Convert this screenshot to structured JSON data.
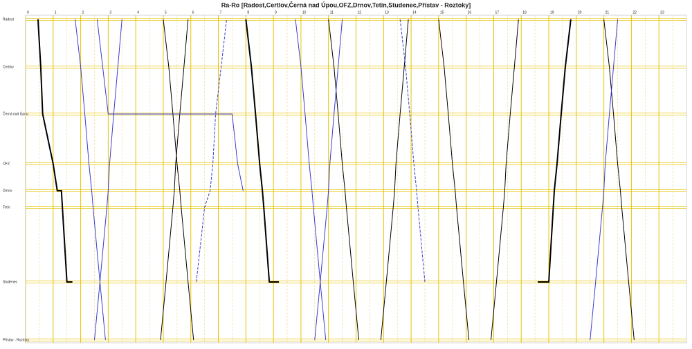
{
  "chart_data": {
    "type": "timetable",
    "title": "Ra-Ro [Radost,Certlov,Černá nad Úpou,OFZ,Drnov,Tetín,Studenec,Přístav - Roztoky]",
    "stations": [
      "Radost",
      "Certlov",
      "Černá nad Úpou",
      "OFZ",
      "Drnov",
      "Tetín",
      "Studenec",
      "Přístav - Roztoky"
    ],
    "xlim": [
      0,
      24
    ],
    "xticks": [
      0,
      1,
      2,
      3,
      4,
      5,
      6,
      7,
      8,
      9,
      10,
      11,
      12,
      13,
      14,
      15,
      16,
      17,
      18,
      19,
      20,
      21,
      22,
      23
    ],
    "grid": true,
    "trains": [
      {
        "color": "#000000",
        "width": 2,
        "dashed": false,
        "times": [
          0.45,
          0.55,
          0.62,
          1.0,
          1.15,
          1.3,
          1.5,
          1.7
        ],
        "stations": [
          0,
          1,
          2,
          3,
          4,
          4,
          6,
          6
        ]
      },
      {
        "color": "#000000",
        "width": 2,
        "dashed": false,
        "times": [
          8.0,
          8.2,
          8.35,
          8.5,
          8.6,
          8.65,
          8.85,
          9.2
        ],
        "stations": [
          0,
          1,
          2,
          3,
          4,
          5,
          6,
          6
        ]
      },
      {
        "color": "#000000",
        "width": 2,
        "dashed": false,
        "times": [
          18.6,
          19.0,
          19.2,
          19.3,
          19.45,
          19.6,
          19.8
        ],
        "stations": [
          6,
          6,
          4,
          3,
          2,
          1,
          0
        ]
      },
      {
        "color": "#000000",
        "width": 1,
        "dashed": false,
        "times": [
          5,
          5.2,
          5.35,
          5.5,
          5.6,
          5.65,
          5.9,
          6.1
        ],
        "stations": [
          0,
          1,
          2,
          3,
          4,
          5,
          6,
          7
        ]
      },
      {
        "color": "#000000",
        "width": 1,
        "dashed": false,
        "times": [
          11,
          11.2,
          11.35,
          11.5,
          11.6,
          11.65,
          11.9,
          12.1
        ],
        "stations": [
          0,
          1,
          2,
          3,
          4,
          5,
          6,
          7
        ]
      },
      {
        "color": "#000000",
        "width": 1,
        "dashed": false,
        "times": [
          15,
          15.2,
          15.35,
          15.5,
          15.6,
          15.65,
          15.9,
          16.1
        ],
        "stations": [
          0,
          1,
          2,
          3,
          4,
          5,
          6,
          7
        ]
      },
      {
        "color": "#000000",
        "width": 1,
        "dashed": false,
        "times": [
          21,
          21.2,
          21.35,
          21.5,
          21.6,
          21.65,
          21.9,
          22.1
        ],
        "stations": [
          0,
          1,
          2,
          3,
          4,
          5,
          6,
          7
        ]
      },
      {
        "color": "#000000",
        "width": 1,
        "dashed": false,
        "times": [
          4.9,
          5.1,
          5.35,
          5.4,
          5.45,
          5.6,
          5.75,
          5.9
        ],
        "stations": [
          7,
          6,
          5,
          4,
          3,
          2,
          1,
          0
        ]
      },
      {
        "color": "#000000",
        "width": 1,
        "dashed": false,
        "times": [
          12.9,
          13.1,
          13.35,
          13.4,
          13.45,
          13.6,
          13.75,
          13.9
        ],
        "stations": [
          7,
          6,
          5,
          4,
          3,
          2,
          1,
          0
        ]
      },
      {
        "color": "#000000",
        "width": 1,
        "dashed": false,
        "times": [
          16.9,
          17.1,
          17.35,
          17.4,
          17.45,
          17.6,
          17.75,
          17.9
        ],
        "stations": [
          7,
          6,
          5,
          4,
          3,
          2,
          1,
          0
        ]
      },
      {
        "color": "#3a3ad0",
        "width": 1,
        "dashed": false,
        "times": [
          1.8,
          2.0,
          2.15,
          2.3,
          2.4,
          2.45,
          2.7,
          2.9
        ],
        "stations": [
          0,
          1,
          2,
          3,
          4,
          5,
          6,
          7
        ]
      },
      {
        "color": "#3a3ad0",
        "width": 1,
        "dashed": false,
        "times": [
          9.8,
          10.0,
          10.15,
          10.3,
          10.4,
          10.45,
          10.7,
          10.9
        ],
        "stations": [
          0,
          1,
          2,
          3,
          4,
          5,
          6,
          7
        ]
      },
      {
        "color": "#3a3ad0",
        "width": 1,
        "dashed": false,
        "times": [
          2.5,
          2.7,
          2.95,
          3.0,
          3.05,
          3.2,
          3.35,
          3.5
        ],
        "stations": [
          7,
          6,
          5,
          4,
          3,
          2,
          1,
          0
        ]
      },
      {
        "color": "#3a3ad0",
        "width": 1,
        "dashed": false,
        "times": [
          10.5,
          10.7,
          10.95,
          11.0,
          11.05,
          11.2,
          11.35,
          11.5
        ],
        "stations": [
          7,
          6,
          5,
          4,
          3,
          2,
          1,
          0
        ]
      },
      {
        "color": "#3a3ad0",
        "width": 1,
        "dashed": false,
        "times": [
          20.5,
          20.7,
          20.95,
          21.0,
          21.05,
          21.2,
          21.35,
          21.5
        ],
        "stations": [
          7,
          6,
          5,
          4,
          3,
          2,
          1,
          0
        ]
      },
      {
        "color": "#3a3ad0",
        "width": 1,
        "dashed": false,
        "times": [
          2.6,
          2.8,
          3.0,
          7.5,
          7.7,
          7.9
        ],
        "stations": [
          0,
          1,
          2,
          2,
          3,
          4
        ]
      },
      {
        "color": "#3a3ad0",
        "width": 1,
        "dashed": true,
        "times": [
          13.6,
          13.8,
          13.95,
          14.1,
          14.2,
          14.25,
          14.5
        ],
        "stations": [
          0,
          1,
          2,
          3,
          4,
          5,
          6
        ]
      },
      {
        "color": "#3a3ad0",
        "width": 1,
        "dashed": true,
        "times": [
          6.2,
          6.5,
          6.7,
          6.8,
          6.9,
          7.1,
          7.3
        ],
        "stations": [
          6,
          5,
          4,
          3,
          2,
          1,
          0
        ]
      }
    ]
  }
}
